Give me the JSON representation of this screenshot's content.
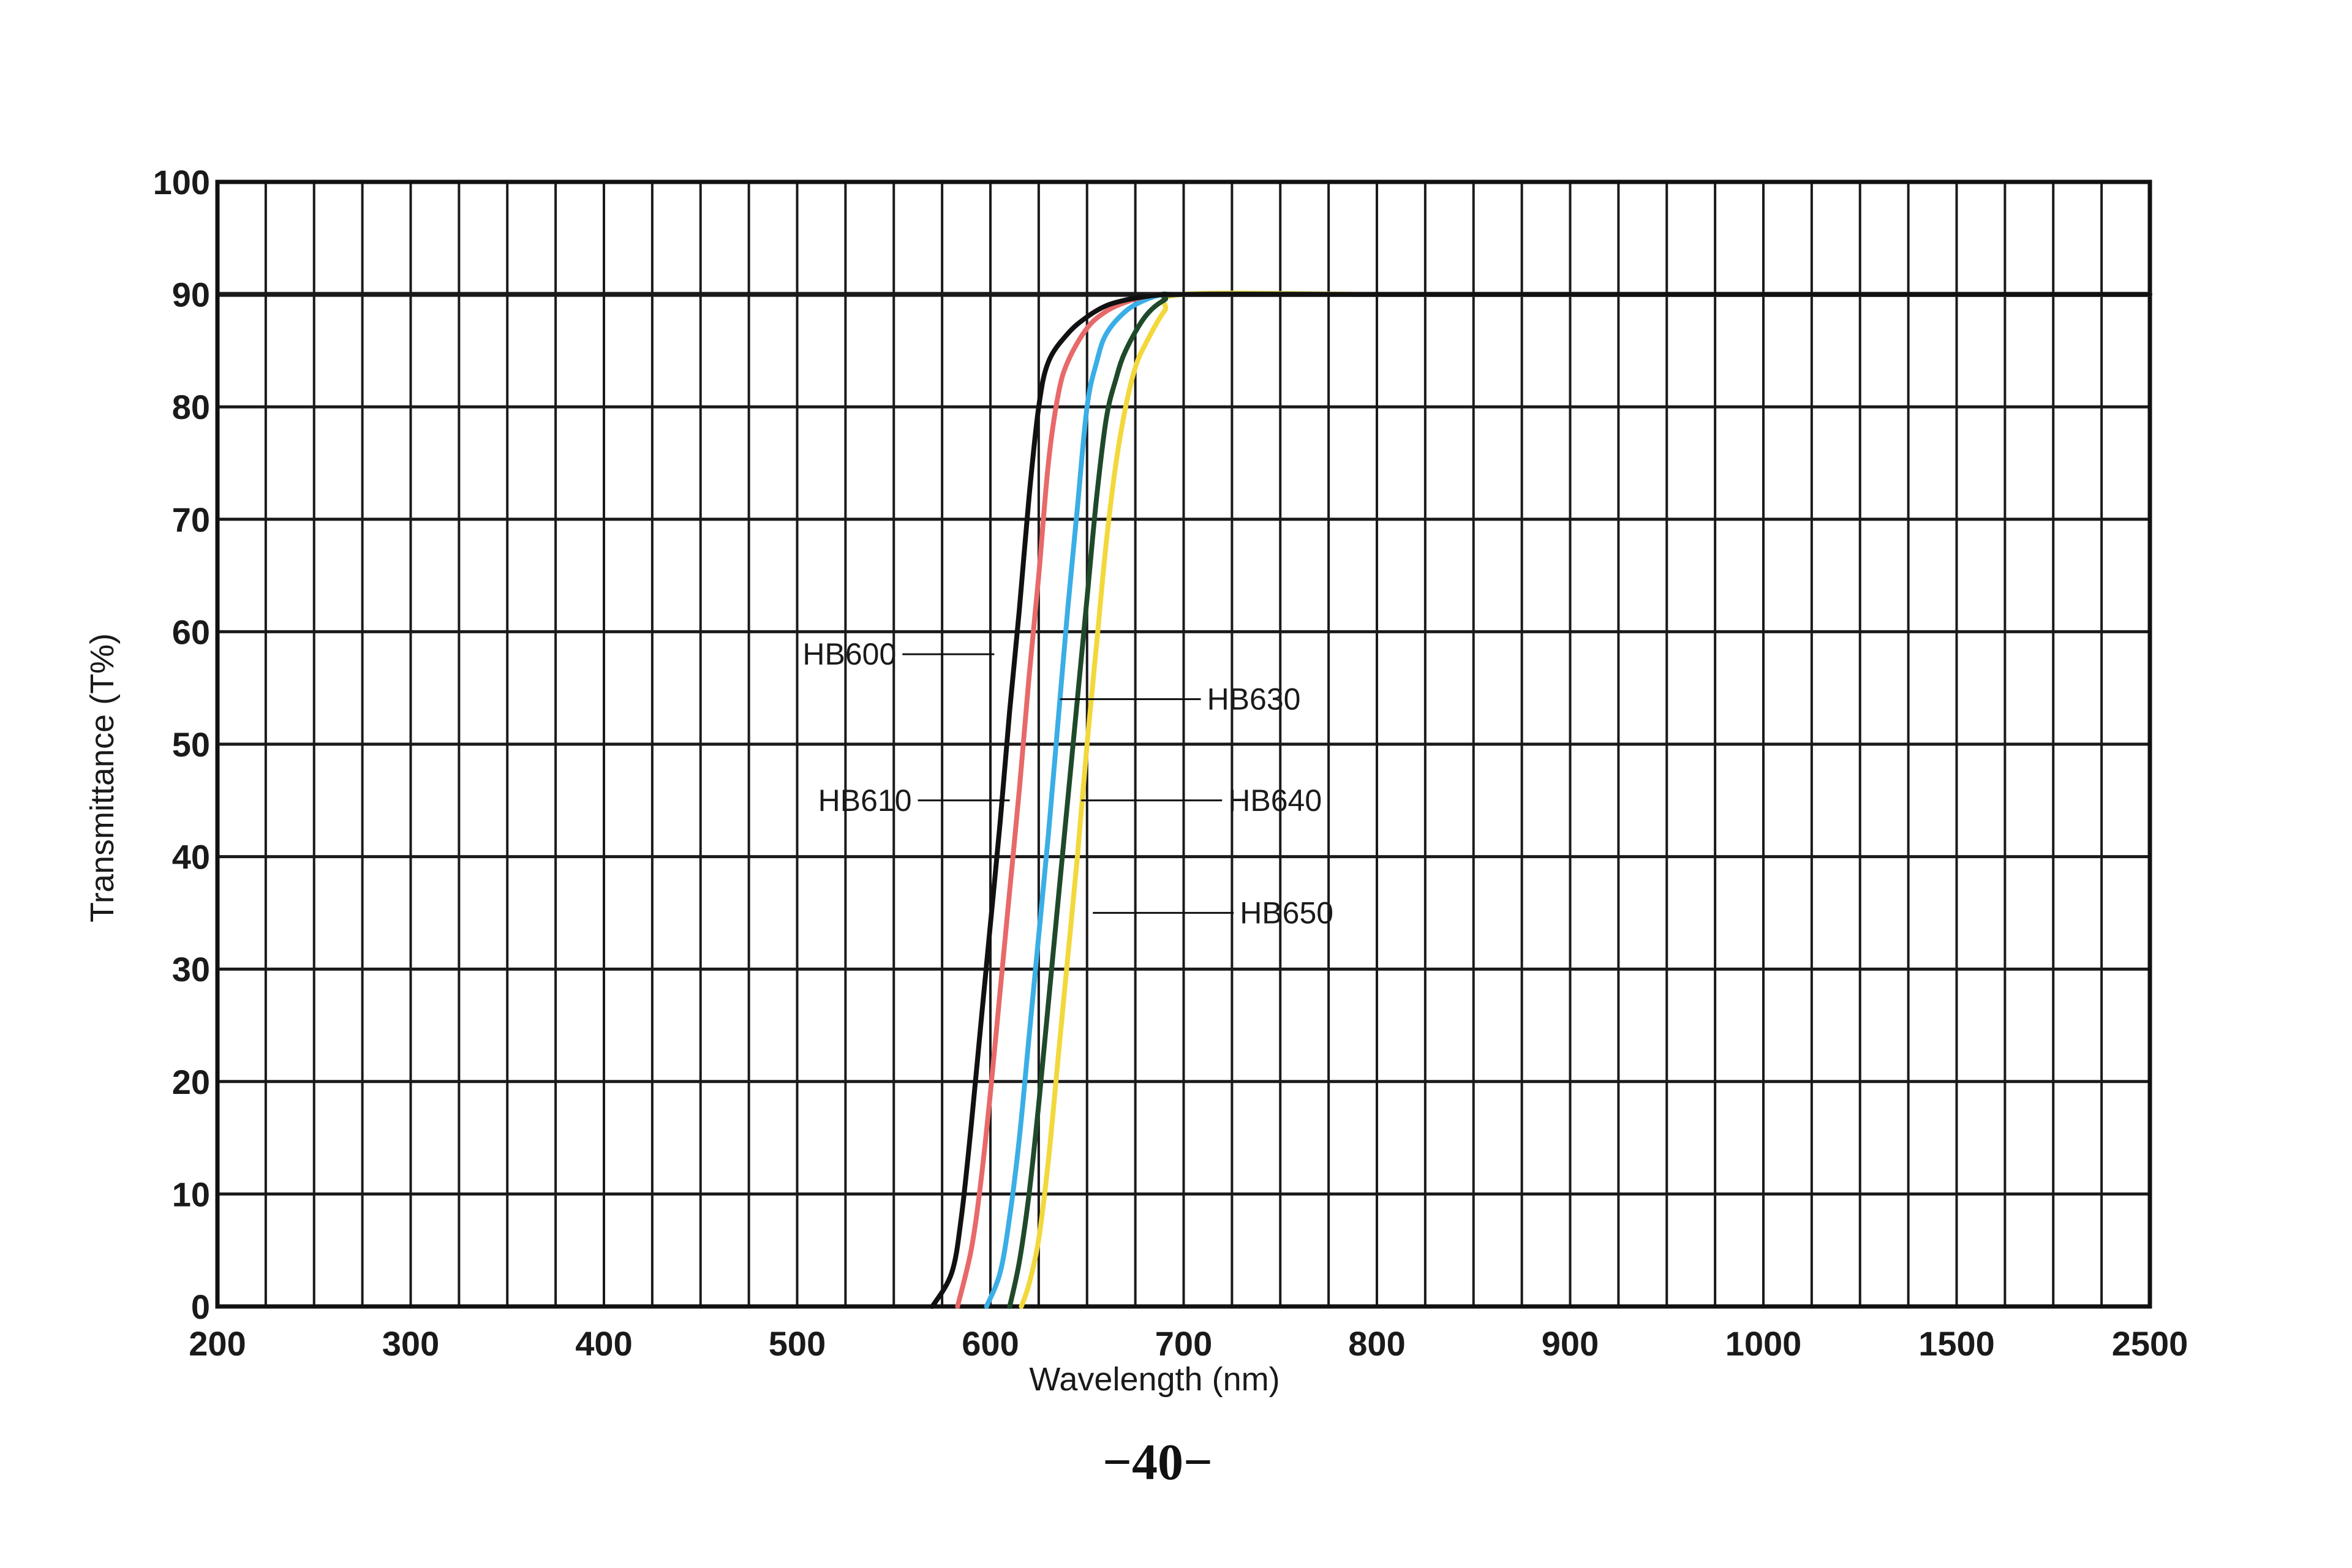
{
  "chart_data": {
    "type": "line",
    "title": "",
    "xlabel": "Wavelength (nm)",
    "ylabel": "Transmittance (T%)",
    "xlim": [
      200,
      2500
    ],
    "ylim": [
      0,
      100
    ],
    "x_ticks": [
      "200",
      "300",
      "400",
      "500",
      "600",
      "700",
      "800",
      "900",
      "1000",
      "1500",
      "2500"
    ],
    "y_ticks": [
      "0",
      "10",
      "20",
      "30",
      "40",
      "50",
      "60",
      "70",
      "80",
      "90",
      "100"
    ],
    "grid": true,
    "legend": "inline labels with leader lines",
    "series": [
      {
        "name": "HB600",
        "color": "#111111",
        "x": [
          570,
          580,
          585,
          590,
          595,
          600,
          605,
          610,
          615,
          620,
          625,
          630,
          640,
          650,
          660,
          670,
          680,
          690,
          700,
          800,
          900,
          1000,
          1500,
          2500
        ],
        "y": [
          0,
          3,
          8,
          16,
          25,
          34,
          43,
          53,
          62,
          72,
          80,
          84,
          86.5,
          88,
          89,
          89.5,
          89.8,
          90,
          90,
          90,
          90,
          90,
          90,
          90
        ]
      },
      {
        "name": "HB610",
        "color": "#e8696a",
        "x": [
          583,
          590,
          595,
          600,
          605,
          610,
          615,
          620,
          625,
          630,
          635,
          640,
          650,
          660,
          670,
          680,
          690,
          700,
          800,
          900,
          1000,
          1500,
          2500
        ],
        "y": [
          0,
          5,
          11,
          19,
          28,
          37,
          46,
          56,
          65,
          75,
          81,
          84,
          87,
          88.5,
          89.3,
          89.8,
          90,
          90,
          90,
          90,
          90,
          90,
          90
        ]
      },
      {
        "name": "HB630",
        "color": "#3aaee6",
        "x": [
          598,
          605,
          610,
          615,
          620,
          625,
          630,
          635,
          640,
          645,
          650,
          655,
          660,
          670,
          680,
          690,
          700,
          800,
          900,
          1000,
          1500,
          2500
        ],
        "y": [
          0,
          3,
          8,
          15,
          24,
          33,
          42,
          52,
          62,
          71,
          80,
          84,
          86.5,
          88.5,
          89.5,
          90,
          90,
          90,
          90,
          90,
          90,
          90
        ]
      },
      {
        "name": "HB640",
        "color": "#1f4a2a",
        "x": [
          610,
          615,
          620,
          625,
          630,
          635,
          640,
          645,
          650,
          655,
          660,
          665,
          670,
          680,
          690,
          700,
          800,
          900,
          1000,
          1500,
          2500
        ],
        "y": [
          0,
          4,
          10,
          18,
          27,
          36,
          45,
          54,
          63,
          72,
          79,
          82.5,
          85,
          88,
          89.5,
          90,
          90,
          90,
          90,
          90,
          90
        ]
      },
      {
        "name": "HB650",
        "color": "#f2d83b",
        "x": [
          616,
          620,
          625,
          630,
          635,
          640,
          645,
          650,
          655,
          660,
          665,
          670,
          675,
          680,
          690,
          700,
          800,
          900,
          1000,
          1500,
          2500
        ],
        "y": [
          0,
          2,
          6,
          13,
          22,
          31,
          40,
          50,
          59,
          68,
          75,
          80,
          83.5,
          85.5,
          88.5,
          90,
          90,
          90,
          90,
          90,
          90
        ]
      }
    ],
    "annotations": [
      {
        "text": "HB600",
        "x": 602,
        "y": 58
      },
      {
        "text": "HB610",
        "x": 610,
        "y": 45
      },
      {
        "text": "HB630",
        "x": 636,
        "y": 54
      },
      {
        "text": "HB640",
        "x": 647,
        "y": 45
      },
      {
        "text": "HB650",
        "x": 653,
        "y": 35
      }
    ]
  },
  "page": {
    "number": "−40−"
  }
}
